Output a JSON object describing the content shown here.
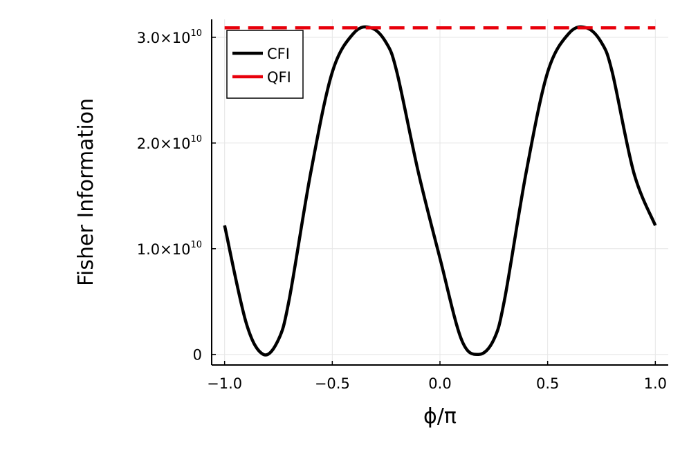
{
  "chart_data": {
    "type": "line",
    "title": "",
    "xlabel": "ϕ/π",
    "ylabel": "Fisher Information",
    "xlim": [
      -1.06,
      1.06
    ],
    "ylim": [
      -1000000000.0,
      31700000000.0
    ],
    "grid": true,
    "legend_position": "top-left",
    "x_ticks": [
      {
        "value": -1.0,
        "label": "−1.0"
      },
      {
        "value": -0.5,
        "label": "−0.5"
      },
      {
        "value": 0.0,
        "label": "0.0"
      },
      {
        "value": 0.5,
        "label": "0.5"
      },
      {
        "value": 1.0,
        "label": "1.0"
      }
    ],
    "y_ticks": [
      {
        "value": 0,
        "mantissa": "0",
        "exponent": ""
      },
      {
        "value": 10000000000.0,
        "mantissa": "1.0×10",
        "exponent": "10"
      },
      {
        "value": 20000000000.0,
        "mantissa": "2.0×10",
        "exponent": "10"
      },
      {
        "value": 30000000000.0,
        "mantissa": "3.0×10",
        "exponent": "10"
      }
    ],
    "series": [
      {
        "name": "CFI",
        "color": "#000000",
        "style": "solid",
        "x": [
          -1.0,
          -0.9,
          -0.82,
          -0.75,
          -0.7,
          -0.6,
          -0.5,
          -0.4,
          -0.32,
          -0.25,
          -0.2,
          -0.1,
          0.0,
          0.1,
          0.18,
          0.25,
          0.3,
          0.4,
          0.5,
          0.6,
          0.68,
          0.75,
          0.8,
          0.9,
          1.0
        ],
        "values": [
          12200000000.0,
          3000000000.0,
          0.0,
          1400000000.0,
          5200000000.0,
          17200000000.0,
          26700000000.0,
          30400000000.0,
          30900000000.0,
          29500000000.0,
          26700000000.0,
          17200000000.0,
          9100000000.0,
          1400000000.0,
          0.0,
          1400000000.0,
          5200000000.0,
          17200000000.0,
          26700000000.0,
          30400000000.0,
          30900000000.0,
          29500000000.0,
          26700000000.0,
          17200000000.0,
          12200000000.0
        ]
      },
      {
        "name": "QFI",
        "color": "#e8000b",
        "style": "dashed",
        "x": [
          -1.0,
          1.0
        ],
        "values": [
          30900000000.0,
          30900000000.0
        ]
      }
    ]
  }
}
